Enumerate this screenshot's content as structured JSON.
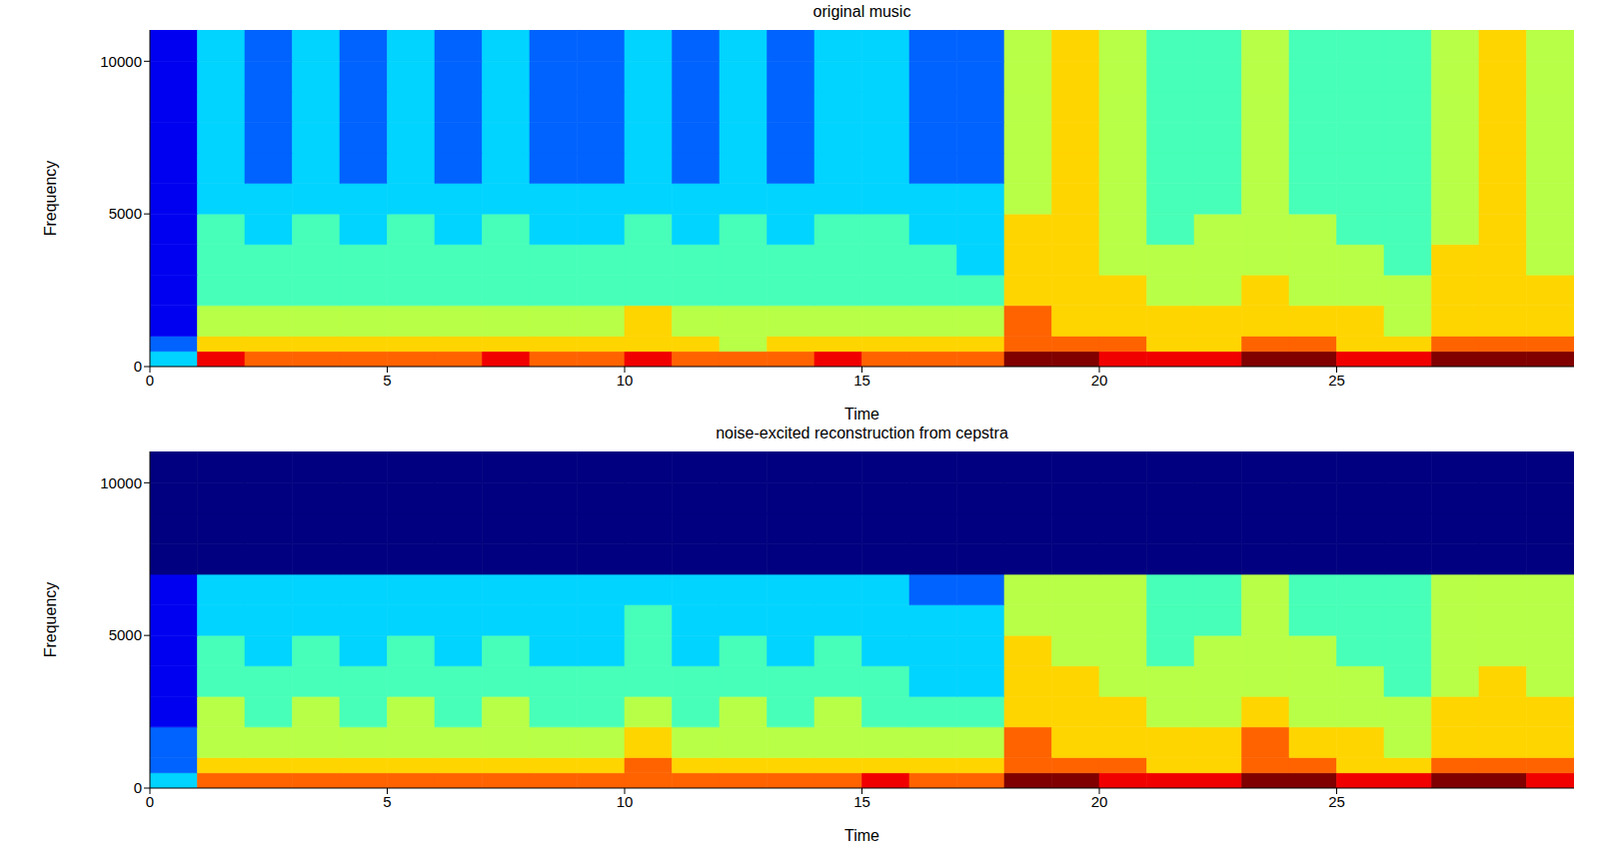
{
  "chart_data": [
    {
      "type": "heatmap",
      "title": "original music",
      "x_label": "Time",
      "y_label": "Frequency",
      "xlim": [
        0,
        30
      ],
      "ylim": [
        0,
        11025
      ],
      "xticks": [
        0,
        5,
        10,
        15,
        20,
        25
      ],
      "yticks": [
        0,
        5000,
        10000
      ],
      "x_edges": [
        0,
        1,
        2,
        3,
        4,
        5,
        6,
        7,
        8,
        9,
        10,
        11,
        12,
        13,
        14,
        15,
        16,
        17,
        18,
        19,
        20,
        21,
        22,
        23,
        24,
        25,
        26,
        27,
        28,
        29,
        30
      ],
      "y_edges": [
        0,
        500,
        1000,
        2000,
        3000,
        4000,
        5000,
        6000,
        7000,
        8000,
        9000,
        10000,
        11025
      ],
      "color_range": [
        0,
        9
      ],
      "cells": [
        [
          3,
          8,
          7,
          7,
          7,
          7,
          7,
          8,
          7,
          7,
          8,
          7,
          7,
          7,
          8,
          7,
          7,
          7,
          9,
          9,
          8,
          8,
          8,
          9,
          9,
          8,
          8,
          9,
          9,
          9
        ],
        [
          2,
          6,
          6,
          6,
          6,
          6,
          6,
          6,
          6,
          6,
          6,
          6,
          5,
          6,
          6,
          6,
          6,
          6,
          7,
          7,
          7,
          6,
          6,
          7,
          7,
          6,
          6,
          7,
          7,
          7
        ],
        [
          1,
          5,
          5,
          5,
          5,
          5,
          5,
          5,
          5,
          5,
          6,
          5,
          5,
          5,
          5,
          5,
          5,
          5,
          7,
          6,
          6,
          6,
          6,
          6,
          6,
          6,
          5,
          6,
          6,
          6
        ],
        [
          1,
          4,
          4,
          4,
          4,
          4,
          4,
          4,
          4,
          4,
          4,
          4,
          4,
          4,
          4,
          4,
          4,
          4,
          6,
          6,
          6,
          5,
          5,
          6,
          5,
          5,
          5,
          6,
          6,
          6
        ],
        [
          1,
          4,
          4,
          4,
          4,
          4,
          4,
          4,
          4,
          4,
          4,
          4,
          4,
          4,
          4,
          4,
          4,
          3,
          6,
          6,
          5,
          5,
          5,
          5,
          5,
          5,
          4,
          6,
          6,
          5
        ],
        [
          1,
          4,
          3,
          4,
          3,
          4,
          3,
          4,
          3,
          3,
          4,
          3,
          4,
          3,
          4,
          4,
          3,
          3,
          6,
          6,
          5,
          4,
          5,
          5,
          5,
          4,
          4,
          5,
          6,
          5
        ],
        [
          1,
          3,
          3,
          3,
          3,
          3,
          3,
          3,
          3,
          3,
          3,
          3,
          3,
          3,
          3,
          3,
          3,
          3,
          5,
          6,
          5,
          4,
          4,
          5,
          4,
          4,
          4,
          5,
          6,
          5
        ],
        [
          1,
          3,
          2,
          3,
          2,
          3,
          2,
          3,
          2,
          2,
          3,
          2,
          3,
          2,
          3,
          3,
          2,
          2,
          5,
          6,
          5,
          4,
          4,
          5,
          4,
          4,
          4,
          5,
          6,
          5
        ],
        [
          1,
          3,
          2,
          3,
          2,
          3,
          2,
          3,
          2,
          2,
          3,
          2,
          3,
          2,
          3,
          3,
          2,
          2,
          5,
          6,
          5,
          4,
          4,
          5,
          4,
          4,
          4,
          5,
          6,
          5
        ],
        [
          1,
          3,
          2,
          3,
          2,
          3,
          2,
          3,
          2,
          2,
          3,
          2,
          3,
          2,
          3,
          3,
          2,
          2,
          5,
          6,
          5,
          4,
          4,
          5,
          4,
          4,
          4,
          5,
          6,
          5
        ],
        [
          1,
          3,
          2,
          3,
          2,
          3,
          2,
          3,
          2,
          2,
          3,
          2,
          3,
          2,
          3,
          3,
          2,
          2,
          5,
          6,
          5,
          4,
          4,
          5,
          4,
          4,
          4,
          5,
          6,
          5
        ],
        [
          1,
          3,
          2,
          3,
          2,
          3,
          2,
          3,
          2,
          2,
          3,
          2,
          3,
          2,
          3,
          3,
          2,
          2,
          5,
          6,
          5,
          4,
          4,
          5,
          4,
          4,
          4,
          5,
          6,
          5
        ]
      ]
    },
    {
      "type": "heatmap",
      "title": "noise-excited reconstruction from cepstra",
      "x_label": "Time",
      "y_label": "Frequency",
      "xlim": [
        0,
        30
      ],
      "ylim": [
        0,
        11025
      ],
      "xticks": [
        0,
        5,
        10,
        15,
        20,
        25
      ],
      "yticks": [
        0,
        5000,
        10000
      ],
      "x_edges": [
        0,
        1,
        2,
        3,
        4,
        5,
        6,
        7,
        8,
        9,
        10,
        11,
        12,
        13,
        14,
        15,
        16,
        17,
        18,
        19,
        20,
        21,
        22,
        23,
        24,
        25,
        26,
        27,
        28,
        29,
        30
      ],
      "y_edges": [
        0,
        500,
        1000,
        2000,
        3000,
        4000,
        5000,
        6000,
        7000,
        8000,
        9000,
        10000,
        11025
      ],
      "color_range": [
        0,
        9
      ],
      "cells": [
        [
          3,
          7,
          7,
          7,
          7,
          7,
          7,
          7,
          7,
          7,
          7,
          7,
          7,
          7,
          7,
          8,
          7,
          7,
          9,
          9,
          8,
          8,
          8,
          9,
          9,
          8,
          8,
          9,
          9,
          8
        ],
        [
          2,
          6,
          6,
          6,
          6,
          6,
          6,
          6,
          6,
          6,
          7,
          6,
          6,
          6,
          6,
          6,
          6,
          6,
          7,
          7,
          7,
          6,
          6,
          7,
          7,
          6,
          6,
          7,
          7,
          7
        ],
        [
          2,
          5,
          5,
          5,
          5,
          5,
          5,
          5,
          5,
          5,
          6,
          5,
          5,
          5,
          5,
          5,
          5,
          5,
          7,
          6,
          6,
          6,
          6,
          7,
          6,
          6,
          5,
          6,
          6,
          6
        ],
        [
          1,
          5,
          4,
          5,
          4,
          5,
          4,
          5,
          4,
          4,
          5,
          4,
          5,
          4,
          5,
          4,
          4,
          4,
          6,
          6,
          6,
          5,
          5,
          6,
          5,
          5,
          5,
          6,
          6,
          6
        ],
        [
          1,
          4,
          4,
          4,
          4,
          4,
          4,
          4,
          4,
          4,
          4,
          4,
          4,
          4,
          4,
          4,
          3,
          3,
          6,
          6,
          5,
          5,
          5,
          5,
          5,
          5,
          4,
          5,
          6,
          5
        ],
        [
          1,
          4,
          3,
          4,
          3,
          4,
          3,
          4,
          3,
          3,
          4,
          3,
          4,
          3,
          4,
          3,
          3,
          3,
          6,
          5,
          5,
          4,
          5,
          5,
          5,
          4,
          4,
          5,
          5,
          5
        ],
        [
          1,
          3,
          3,
          3,
          3,
          3,
          3,
          3,
          3,
          3,
          4,
          3,
          3,
          3,
          3,
          3,
          3,
          3,
          5,
          5,
          5,
          4,
          4,
          5,
          4,
          4,
          4,
          5,
          5,
          5
        ],
        [
          1,
          3,
          3,
          3,
          3,
          3,
          3,
          3,
          3,
          3,
          3,
          3,
          3,
          3,
          3,
          3,
          2,
          2,
          5,
          5,
          5,
          4,
          4,
          5,
          4,
          4,
          4,
          5,
          5,
          5
        ],
        [
          0,
          0,
          0,
          0,
          0,
          0,
          0,
          0,
          0,
          0,
          0,
          0,
          0,
          0,
          0,
          0,
          0,
          0,
          0,
          0,
          0,
          0,
          0,
          0,
          0,
          0,
          0,
          0,
          0,
          0
        ],
        [
          0,
          0,
          0,
          0,
          0,
          0,
          0,
          0,
          0,
          0,
          0,
          0,
          0,
          0,
          0,
          0,
          0,
          0,
          0,
          0,
          0,
          0,
          0,
          0,
          0,
          0,
          0,
          0,
          0,
          0
        ],
        [
          0,
          0,
          0,
          0,
          0,
          0,
          0,
          0,
          0,
          0,
          0,
          0,
          0,
          0,
          0,
          0,
          0,
          0,
          0,
          0,
          0,
          0,
          0,
          0,
          0,
          0,
          0,
          0,
          0,
          0
        ],
        [
          0,
          0,
          0,
          0,
          0,
          0,
          0,
          0,
          0,
          0,
          0,
          0,
          0,
          0,
          0,
          0,
          0,
          0,
          0,
          0,
          0,
          0,
          0,
          0,
          0,
          0,
          0,
          0,
          0,
          0
        ]
      ]
    }
  ]
}
